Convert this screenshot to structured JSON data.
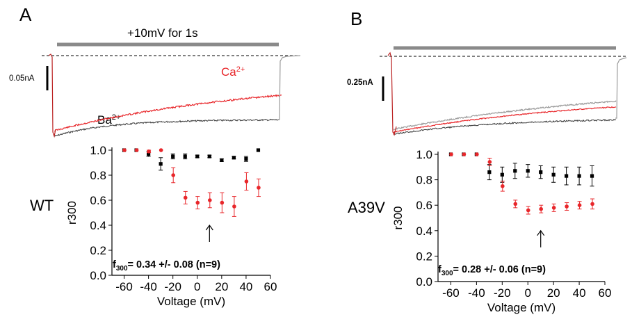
{
  "panels": [
    {
      "letter": "A",
      "stimulus_label": "+10mV for 1s",
      "current_scale": "0.05nA",
      "ca_label": "Ca",
      "ca_charge": "2+",
      "ba_label": "Ba",
      "ba_charge": "2+",
      "genotype": "WT",
      "f300_label": "f",
      "f300_sub": "300",
      "f300_text": "= 0.34 +/- 0.08   (n=9)"
    },
    {
      "letter": "B",
      "current_scale": "0.25nA",
      "genotype": "A39V",
      "f300_label": "f",
      "f300_sub": "300",
      "f300_text": "= 0.28 +/- 0.06   (n=9)"
    }
  ],
  "colors": {
    "ca": "#e8262a",
    "ba": "#000000",
    "trace_ba": "#333333",
    "trace_grey": "#9a9a9a",
    "stim": "#8a8a8a"
  },
  "chart_data": [
    {
      "type": "scatter",
      "panel": "A",
      "xlabel": "Voltage (mV)",
      "ylabel": "r300",
      "xlim": [
        -70,
        60
      ],
      "ylim": [
        0.0,
        1.0
      ],
      "xticks": [
        -60,
        -40,
        -20,
        0,
        20,
        40,
        60
      ],
      "yticks": [
        0.0,
        0.2,
        0.4,
        0.6,
        0.8,
        1.0
      ],
      "series": [
        {
          "name": "Ba2+",
          "color": "#000000",
          "marker": "square",
          "x": [
            -60,
            -50,
            -40,
            -30,
            -20,
            -10,
            0,
            10,
            20,
            30,
            40,
            50
          ],
          "y": [
            1.0,
            1.0,
            0.97,
            0.89,
            0.95,
            0.95,
            0.95,
            0.95,
            0.92,
            0.94,
            0.93,
            1.0
          ],
          "err": [
            0,
            0,
            0.02,
            0.05,
            0.02,
            0.02,
            0.01,
            0.01,
            0.01,
            0.01,
            0.02,
            0
          ]
        },
        {
          "name": "Ca2+",
          "color": "#e8262a",
          "marker": "circle",
          "x": [
            -60,
            -50,
            -40,
            -30,
            -20,
            -10,
            0,
            10,
            20,
            30,
            40,
            50
          ],
          "y": [
            1.0,
            1.0,
            0.99,
            1.0,
            0.8,
            0.62,
            0.58,
            0.6,
            0.58,
            0.55,
            0.75,
            0.7
          ],
          "err": [
            0,
            0,
            0.01,
            0,
            0.06,
            0.05,
            0.05,
            0.06,
            0.08,
            0.08,
            0.07,
            0.07
          ]
        }
      ],
      "annotations": [
        {
          "type": "arrow",
          "x": 10
        }
      ]
    },
    {
      "type": "scatter",
      "panel": "B",
      "xlabel": "Voltage (mV)",
      "ylabel": "r300",
      "xlim": [
        -70,
        60
      ],
      "ylim": [
        0.0,
        1.0
      ],
      "xticks": [
        -60,
        -40,
        -20,
        0,
        20,
        40,
        60
      ],
      "yticks": [
        0.0,
        0.2,
        0.4,
        0.6,
        0.8,
        1.0
      ],
      "series": [
        {
          "name": "Ba2+",
          "color": "#000000",
          "marker": "square",
          "x": [
            -60,
            -50,
            -40,
            -30,
            -20,
            -10,
            0,
            10,
            20,
            30,
            40,
            50
          ],
          "y": [
            1.0,
            1.0,
            1.0,
            0.86,
            0.84,
            0.87,
            0.87,
            0.86,
            0.84,
            0.83,
            0.83,
            0.83
          ],
          "err": [
            0,
            0,
            0,
            0.06,
            0.06,
            0.06,
            0.05,
            0.05,
            0.06,
            0.07,
            0.07,
            0.08
          ]
        },
        {
          "name": "Ca2+",
          "color": "#e8262a",
          "marker": "circle",
          "x": [
            -60,
            -50,
            -40,
            -30,
            -20,
            -10,
            0,
            10,
            20,
            30,
            40,
            50
          ],
          "y": [
            1.0,
            1.0,
            1.0,
            0.94,
            0.75,
            0.61,
            0.56,
            0.57,
            0.58,
            0.59,
            0.6,
            0.61
          ],
          "err": [
            0,
            0,
            0,
            0.03,
            0.04,
            0.03,
            0.03,
            0.03,
            0.03,
            0.03,
            0.03,
            0.04
          ]
        }
      ],
      "annotations": [
        {
          "type": "arrow",
          "x": 10
        }
      ]
    }
  ]
}
